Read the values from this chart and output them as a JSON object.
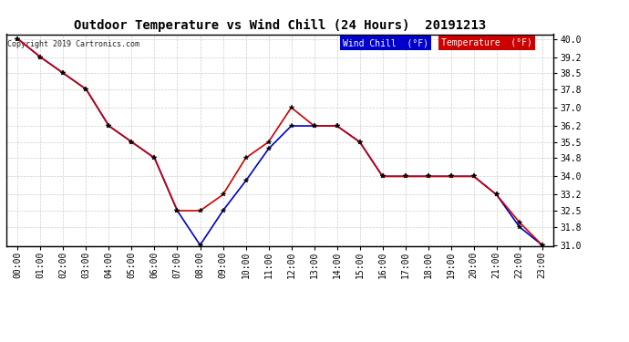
{
  "title": "Outdoor Temperature vs Wind Chill (24 Hours)  20191213",
  "copyright": "Copyright 2019 Cartronics.com",
  "x_labels": [
    "00:00",
    "01:00",
    "02:00",
    "03:00",
    "04:00",
    "05:00",
    "06:00",
    "07:00",
    "08:00",
    "09:00",
    "10:00",
    "11:00",
    "12:00",
    "13:00",
    "14:00",
    "15:00",
    "16:00",
    "17:00",
    "18:00",
    "19:00",
    "20:00",
    "21:00",
    "22:00",
    "23:00"
  ],
  "temperature": [
    40.0,
    39.2,
    38.5,
    37.8,
    36.2,
    35.5,
    34.8,
    32.5,
    32.5,
    33.2,
    34.8,
    35.5,
    37.0,
    36.2,
    36.2,
    35.5,
    34.0,
    34.0,
    34.0,
    34.0,
    34.0,
    33.2,
    32.0,
    31.0
  ],
  "wind_chill": [
    40.0,
    39.2,
    38.5,
    37.8,
    36.2,
    35.5,
    34.8,
    32.5,
    31.0,
    32.5,
    33.8,
    35.2,
    36.2,
    36.2,
    36.2,
    35.5,
    34.0,
    34.0,
    34.0,
    34.0,
    34.0,
    33.2,
    31.8,
    31.0
  ],
  "temp_color": "#cc0000",
  "wind_chill_color": "#0000cc",
  "ylim_min": 31.0,
  "ylim_max": 40.0,
  "yticks": [
    31.0,
    31.8,
    32.5,
    33.2,
    34.0,
    34.8,
    35.5,
    36.2,
    37.0,
    37.8,
    38.5,
    39.2,
    40.0
  ],
  "background_color": "#ffffff",
  "grid_color": "#c8c8c8",
  "legend_wind_chill_bg": "#0000cc",
  "legend_temp_bg": "#cc0000",
  "legend_text_color": "#ffffff",
  "title_fontsize": 10,
  "tick_fontsize": 7
}
